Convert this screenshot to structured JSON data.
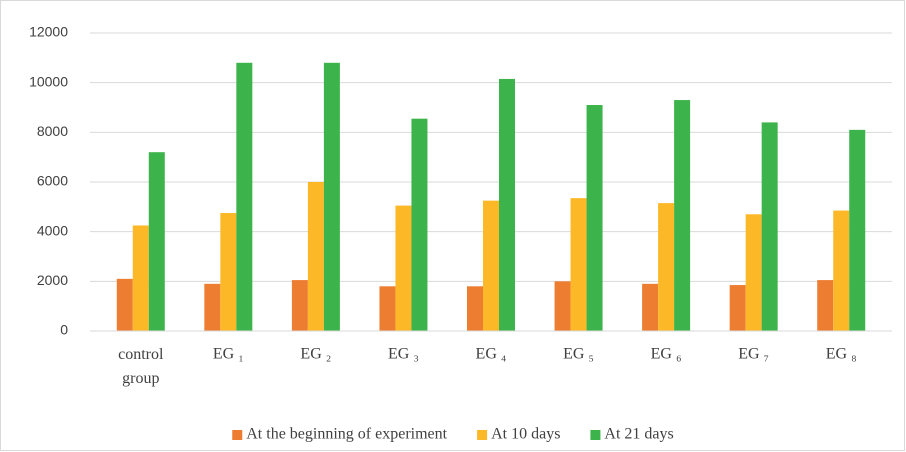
{
  "chart_data": {
    "type": "bar",
    "categories": [
      "control group",
      "EG ₁",
      "EG ₂",
      "EG ₃",
      "EG ₄",
      "EG ₅",
      "EG ₆",
      "EG ₇",
      "EG ₈"
    ],
    "series": [
      {
        "name": "At the beginning of experiment",
        "color": "#ed7d31",
        "values": [
          2100,
          1900,
          2050,
          1800,
          1800,
          2000,
          1900,
          1850,
          2050
        ]
      },
      {
        "name": "At 10 days",
        "color": "#fdb827",
        "values": [
          4250,
          4750,
          6000,
          5050,
          5250,
          5350,
          5150,
          4700,
          4850
        ]
      },
      {
        "name": "At 21 days",
        "color": "#3cb44b",
        "values": [
          7200,
          10800,
          10800,
          8550,
          10150,
          9100,
          9300,
          8400,
          8100
        ]
      }
    ],
    "ylim": [
      0,
      12000
    ],
    "yticks": [
      0,
      2000,
      4000,
      6000,
      8000,
      10000,
      12000
    ],
    "grid": true,
    "legend": "bottom"
  }
}
